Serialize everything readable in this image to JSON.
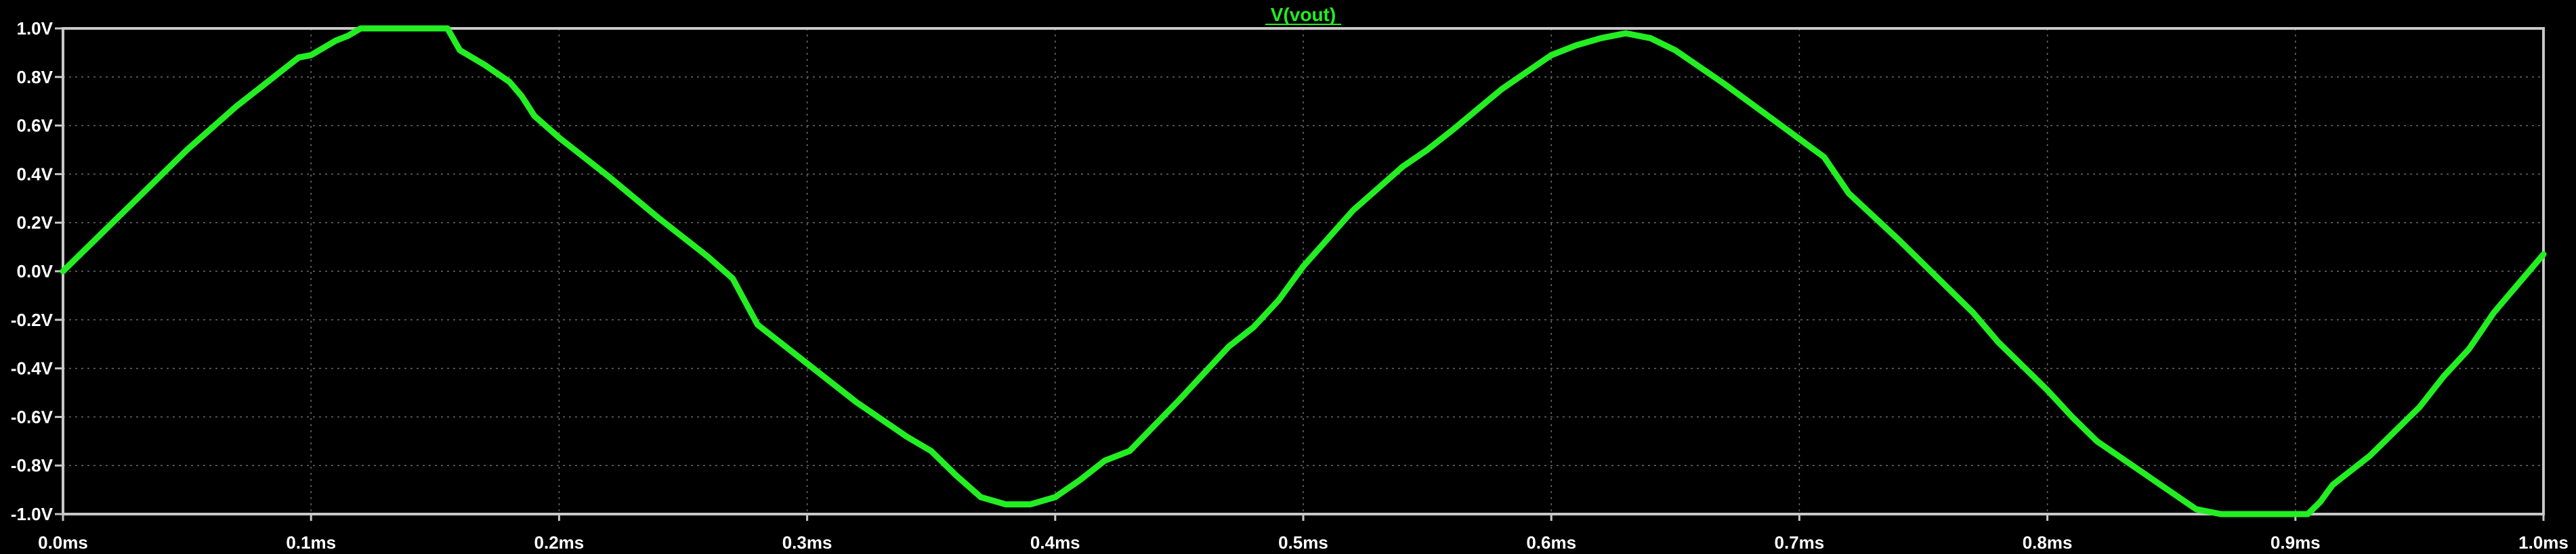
{
  "chart_data": {
    "type": "line",
    "title": "V(vout)",
    "xlabel": "",
    "ylabel": "",
    "xlim": [
      0.0,
      1.0
    ],
    "ylim": [
      -1.0,
      1.0
    ],
    "x_unit": "ms",
    "y_unit": "V",
    "x_ticks": [
      "0.0ms",
      "0.1ms",
      "0.2ms",
      "0.3ms",
      "0.4ms",
      "0.5ms",
      "0.6ms",
      "0.7ms",
      "0.8ms",
      "0.9ms",
      "1.0ms"
    ],
    "y_ticks": [
      "1.0V",
      "0.8V",
      "0.6V",
      "0.4V",
      "0.2V",
      "0.0V",
      "-0.2V",
      "-0.4V",
      "-0.6V",
      "-0.8V",
      "-1.0V"
    ],
    "grid": true,
    "colors": {
      "background": "#000000",
      "frame": "#c8c8c8",
      "grid": "#6a6a6a",
      "trace": "#22ee22",
      "text": "#ffffff"
    },
    "series": [
      {
        "name": "V(vout)",
        "x": [
          0.0,
          0.01,
          0.02,
          0.03,
          0.04,
          0.05,
          0.06,
          0.07,
          0.08,
          0.09,
          0.095,
          0.1,
          0.11,
          0.115,
          0.12,
          0.13,
          0.14,
          0.15,
          0.155,
          0.16,
          0.17,
          0.18,
          0.185,
          0.19,
          0.2,
          0.22,
          0.24,
          0.26,
          0.27,
          0.28,
          0.3,
          0.32,
          0.34,
          0.35,
          0.36,
          0.37,
          0.38,
          0.39,
          0.4,
          0.41,
          0.42,
          0.43,
          0.45,
          0.47,
          0.48,
          0.49,
          0.5,
          0.52,
          0.54,
          0.55,
          0.56,
          0.58,
          0.6,
          0.61,
          0.62,
          0.63,
          0.64,
          0.65,
          0.66,
          0.67,
          0.69,
          0.71,
          0.72,
          0.74,
          0.76,
          0.77,
          0.78,
          0.8,
          0.81,
          0.82,
          0.84,
          0.86,
          0.87,
          0.88,
          0.89,
          0.905,
          0.91,
          0.915,
          0.92,
          0.93,
          0.95,
          0.96,
          0.97,
          0.98,
          1.0
        ],
        "y": [
          0.0,
          0.1,
          0.2,
          0.3,
          0.4,
          0.5,
          0.59,
          0.68,
          0.76,
          0.84,
          0.88,
          0.89,
          0.95,
          0.97,
          1.0,
          1.0,
          1.0,
          1.0,
          1.0,
          0.91,
          0.85,
          0.78,
          0.72,
          0.64,
          0.55,
          0.39,
          0.22,
          0.06,
          -0.03,
          -0.22,
          -0.38,
          -0.54,
          -0.68,
          -0.74,
          -0.84,
          -0.93,
          -0.96,
          -0.96,
          -0.93,
          -0.86,
          -0.78,
          -0.74,
          -0.53,
          -0.31,
          -0.23,
          -0.12,
          0.02,
          0.25,
          0.43,
          0.5,
          0.58,
          0.75,
          0.89,
          0.93,
          0.96,
          0.98,
          0.96,
          0.91,
          0.84,
          0.77,
          0.62,
          0.47,
          0.32,
          0.13,
          -0.07,
          -0.17,
          -0.29,
          -0.49,
          -0.6,
          -0.7,
          -0.84,
          -0.98,
          -1.0,
          -1.0,
          -1.0,
          -1.0,
          -0.95,
          -0.88,
          -0.84,
          -0.76,
          -0.56,
          -0.43,
          -0.32,
          -0.17,
          0.07
        ]
      }
    ]
  }
}
